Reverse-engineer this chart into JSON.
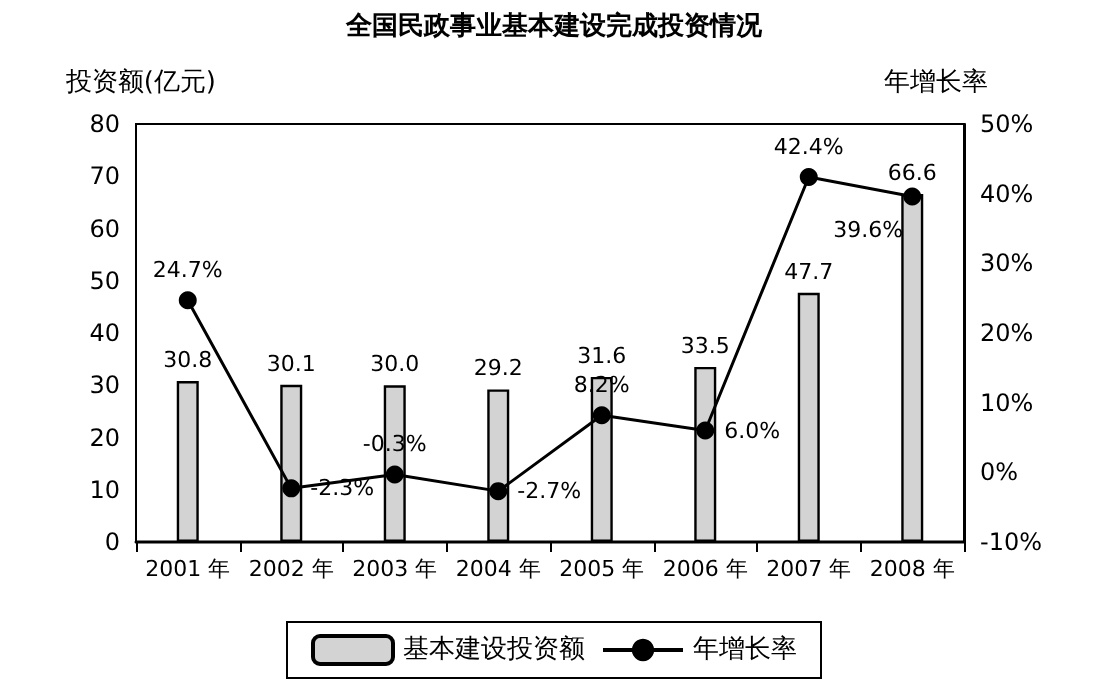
{
  "chart_data": {
    "type": "bar",
    "title": "全国民政事业基本建设完成投资情况",
    "ylabel": "投资额(亿元)",
    "y2label": "年增长率",
    "categories": [
      "2001 年",
      "2002 年",
      "2003 年",
      "2004 年",
      "2005 年",
      "2006 年",
      "2007 年",
      "2008 年"
    ],
    "series": [
      {
        "name": "基本建设投资额",
        "color": "#d3d3d3",
        "values": [
          30.8,
          30.1,
          30.0,
          29.2,
          31.6,
          33.5,
          47.7,
          66.6
        ],
        "value_labels": [
          "30.8",
          "30.1",
          "30.0",
          "29.2",
          "31.6",
          "33.5",
          "47.7",
          "66.6"
        ]
      },
      {
        "name": "年增长率",
        "type": "line",
        "axis": "y2",
        "color": "#000000",
        "values": [
          24.7,
          -2.3,
          -0.3,
          -2.7,
          8.2,
          6.0,
          42.4,
          39.6
        ],
        "value_labels": [
          "24.7%",
          "-2.3%",
          "-0.3%",
          "-2.7%",
          "8.2%",
          "6.0%",
          "42.4%",
          "39.6%"
        ]
      }
    ],
    "marker": "circle",
    "grid": false,
    "legend": "bottom",
    "ylim": [
      0,
      80
    ],
    "yticks": [
      0,
      10,
      20,
      30,
      40,
      50,
      60,
      70,
      80
    ],
    "y2lim": [
      -10,
      50
    ],
    "y2ticks": [
      {
        "value": -10,
        "label": "-10%"
      },
      {
        "value": 0,
        "label": "0%"
      },
      {
        "value": 10,
        "label": "10%"
      },
      {
        "value": 20,
        "label": "20%"
      },
      {
        "value": 30,
        "label": "30%"
      },
      {
        "value": 40,
        "label": "40%"
      },
      {
        "value": 50,
        "label": "50%"
      }
    ]
  }
}
